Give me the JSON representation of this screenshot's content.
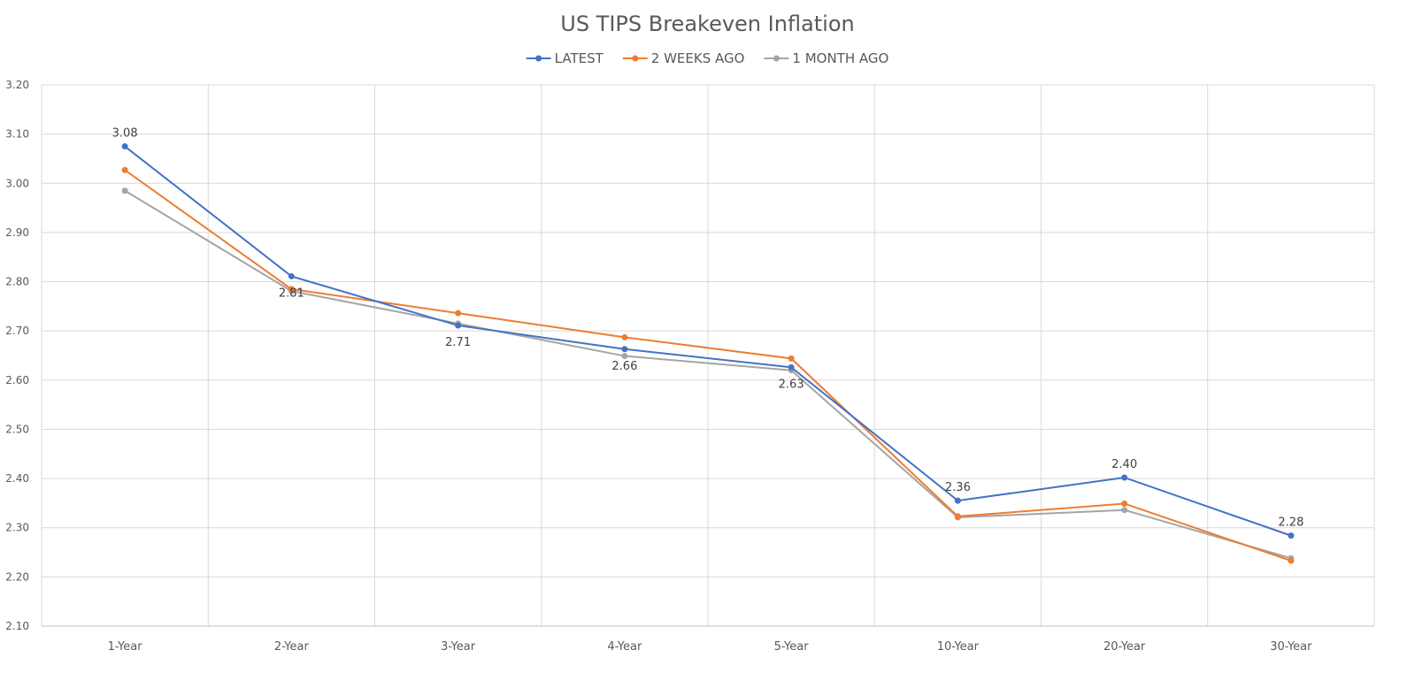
{
  "chart_data": {
    "type": "line",
    "title": "US TIPS Breakeven Inflation",
    "xlabel": "",
    "ylabel": "",
    "categories": [
      "1-Year",
      "2-Year",
      "3-Year",
      "4-Year",
      "5-Year",
      "10-Year",
      "20-Year",
      "30-Year"
    ],
    "ylim": [
      2.1,
      3.2
    ],
    "yticks": [
      "2.10",
      "2.20",
      "2.30",
      "2.40",
      "2.50",
      "2.60",
      "2.70",
      "2.80",
      "2.90",
      "3.00",
      "3.10",
      "3.20"
    ],
    "grid": true,
    "legend_position": "top",
    "series": [
      {
        "name": "LATEST",
        "color": "#4472c4",
        "values": [
          3.075,
          2.811,
          2.711,
          2.663,
          2.626,
          2.355,
          2.402,
          2.284
        ],
        "data_labels": [
          "3.08",
          "2.81",
          "2.71",
          "2.66",
          "2.63",
          "2.36",
          "2.40",
          "2.28"
        ],
        "label_positions": [
          "above",
          "below",
          "below",
          "below",
          "below",
          "above",
          "above",
          "above"
        ]
      },
      {
        "name": "2 WEEKS AGO",
        "color": "#ed7d31",
        "values": [
          3.027,
          2.785,
          2.736,
          2.687,
          2.644,
          2.323,
          2.349,
          2.233
        ]
      },
      {
        "name": "1 MONTH AGO",
        "color": "#a5a5a5",
        "values": [
          2.985,
          2.781,
          2.715,
          2.649,
          2.62,
          2.321,
          2.336,
          2.238
        ]
      }
    ]
  }
}
